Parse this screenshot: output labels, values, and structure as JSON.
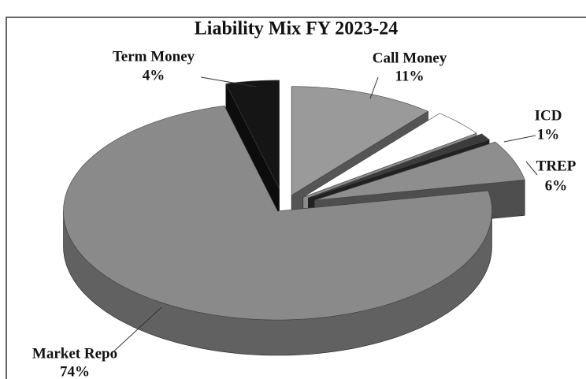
{
  "chart_data": {
    "type": "pie3d",
    "title": "Liability Mix FY 2023-24",
    "categories": [
      "Call Money",
      null,
      "ICD",
      "TREP",
      "Market Repo",
      "Term Money"
    ],
    "values": [
      11,
      4,
      1,
      6,
      74,
      4
    ],
    "value_labels": [
      "11%",
      null,
      "1%",
      "6%",
      "74%",
      "4%"
    ],
    "colors": [
      "#9a9a9a",
      "#ffffff",
      "#3c3c3c",
      "#8e8e8e",
      "#8a8a8a",
      "#151515"
    ]
  }
}
